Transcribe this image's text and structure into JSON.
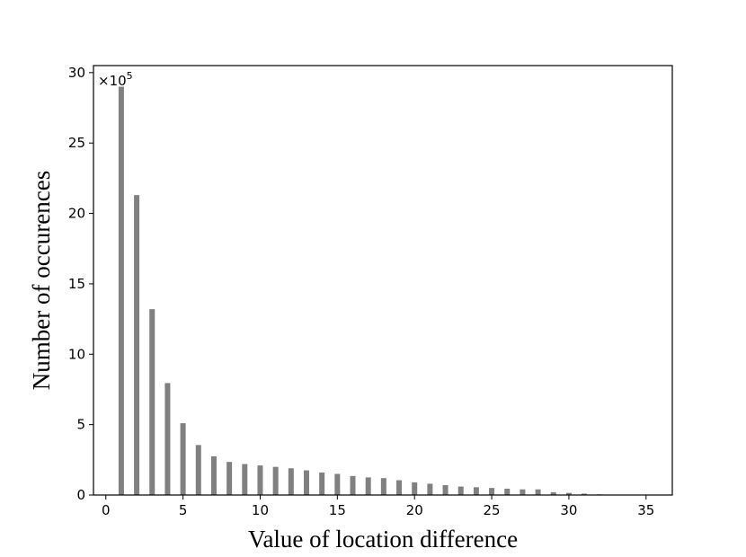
{
  "chart_data": {
    "type": "bar",
    "xlabel": "Value of location difference",
    "ylabel": "Number of occurences",
    "y_offset_text": "×10",
    "y_offset_exponent": "5",
    "x": [
      1,
      2,
      3,
      4,
      5,
      6,
      7,
      8,
      9,
      10,
      11,
      12,
      13,
      14,
      15,
      16,
      17,
      18,
      19,
      20,
      21,
      22,
      23,
      24,
      25,
      26,
      27,
      28,
      29,
      30,
      31,
      32,
      33,
      34,
      35
    ],
    "values": [
      29.0,
      21.3,
      13.2,
      7.95,
      5.1,
      3.55,
      2.75,
      2.35,
      2.2,
      2.1,
      2.0,
      1.9,
      1.75,
      1.6,
      1.5,
      1.35,
      1.25,
      1.2,
      1.05,
      0.9,
      0.8,
      0.7,
      0.6,
      0.55,
      0.5,
      0.45,
      0.4,
      0.4,
      0.2,
      0.15,
      0.1,
      0.05,
      0.03,
      0.02,
      0.01
    ],
    "xlim": [
      -0.8,
      36.7
    ],
    "ylim": [
      0,
      30.5
    ],
    "xticks": [
      0,
      5,
      10,
      15,
      20,
      25,
      30,
      35
    ],
    "yticks": [
      0,
      5,
      10,
      15,
      20,
      25,
      30
    ],
    "bar_color": "#808080",
    "grid": false,
    "legend": "none"
  }
}
